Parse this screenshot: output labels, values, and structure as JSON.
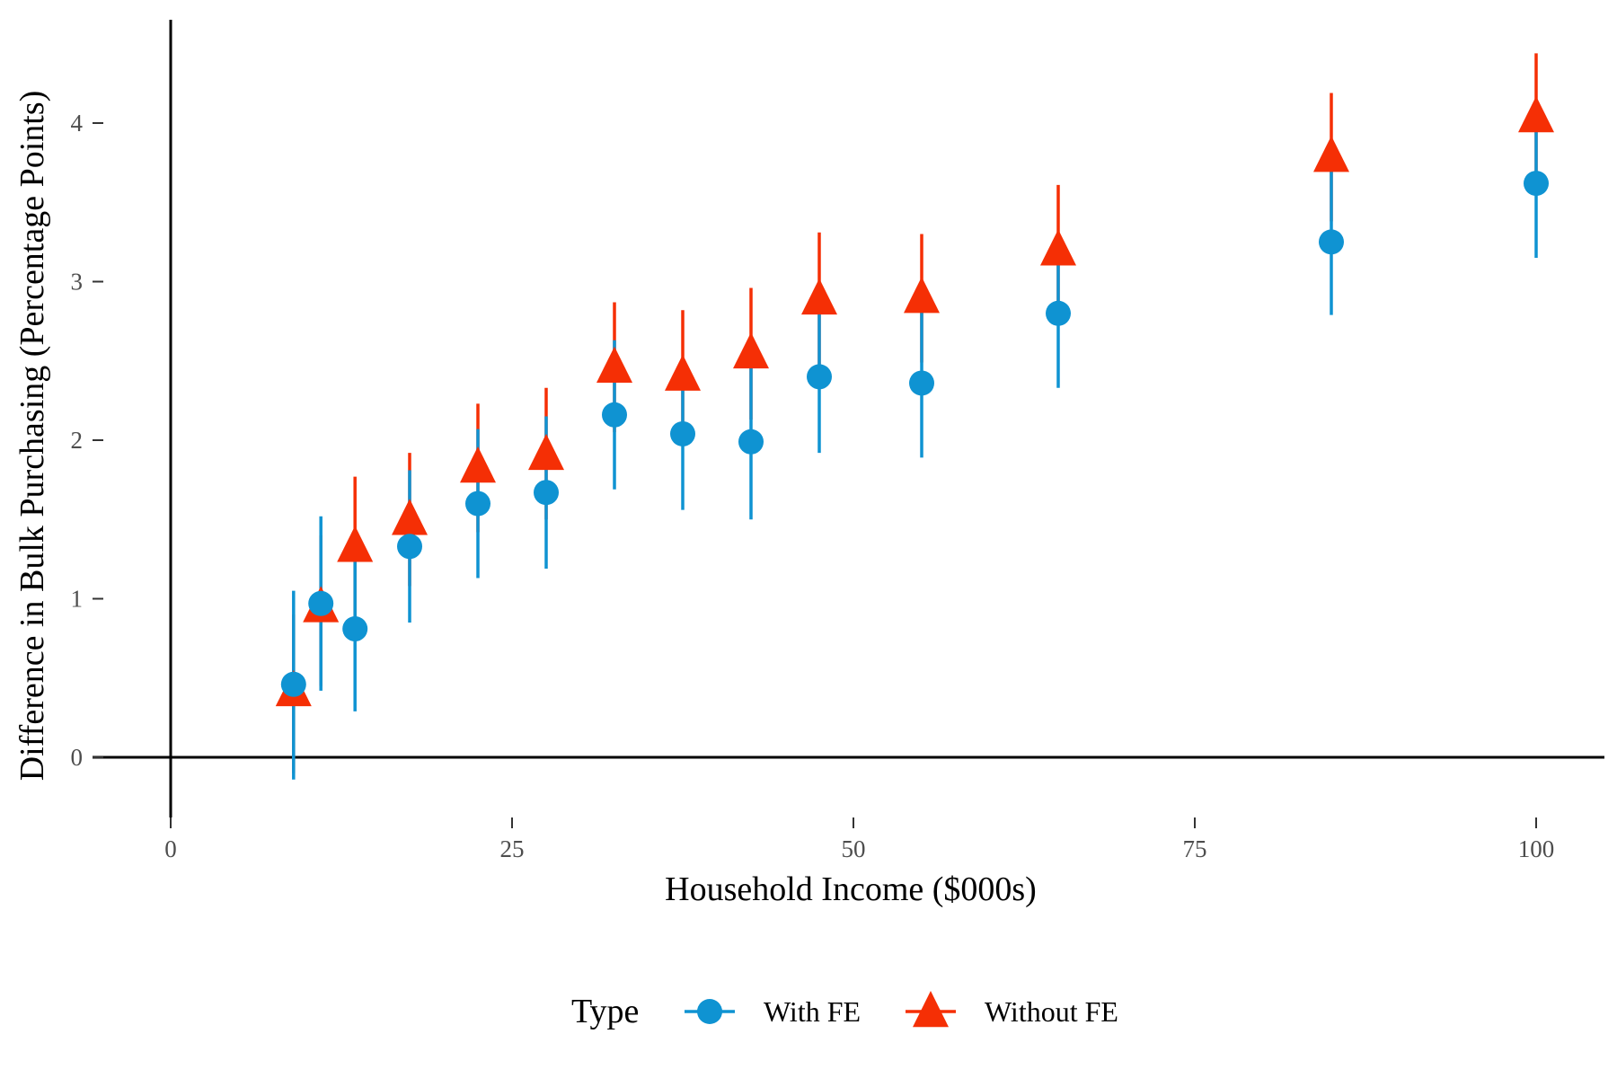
{
  "chart_data": {
    "type": "scatter",
    "xlabel": "Household Income ($000s)",
    "ylabel": "Difference in Bulk Purchasing (Percentage Points)",
    "xlim": [
      0,
      100
    ],
    "ylim": [
      0,
      4
    ],
    "x_ticks": [
      "0",
      "25",
      "50",
      "75",
      "100"
    ],
    "y_ticks": [
      "0",
      "1",
      "2",
      "3",
      "4"
    ],
    "grid": false,
    "error_bars": true,
    "legend": {
      "title": "Type",
      "position": "bottom"
    },
    "series": [
      {
        "name": "With FE",
        "marker": "circle",
        "color": "#0f93d2",
        "points": [
          {
            "x": 9,
            "y": 0.46,
            "lo": -0.14,
            "hi": 1.05
          },
          {
            "x": 11,
            "y": 0.97,
            "lo": 0.42,
            "hi": 1.52
          },
          {
            "x": 13.5,
            "y": 0.81,
            "lo": 0.29,
            "hi": 1.3
          },
          {
            "x": 17.5,
            "y": 1.33,
            "lo": 0.85,
            "hi": 1.81
          },
          {
            "x": 22.5,
            "y": 1.6,
            "lo": 1.13,
            "hi": 2.07
          },
          {
            "x": 27.5,
            "y": 1.67,
            "lo": 1.19,
            "hi": 2.15
          },
          {
            "x": 32.5,
            "y": 2.16,
            "lo": 1.69,
            "hi": 2.63
          },
          {
            "x": 37.5,
            "y": 2.04,
            "lo": 1.56,
            "hi": 2.51
          },
          {
            "x": 42.5,
            "y": 1.99,
            "lo": 1.5,
            "hi": 2.48
          },
          {
            "x": 47.5,
            "y": 2.4,
            "lo": 1.92,
            "hi": 2.88
          },
          {
            "x": 55,
            "y": 2.36,
            "lo": 1.89,
            "hi": 2.84
          },
          {
            "x": 65,
            "y": 2.8,
            "lo": 2.33,
            "hi": 3.27
          },
          {
            "x": 85,
            "y": 3.25,
            "lo": 2.79,
            "hi": 3.72
          },
          {
            "x": 100,
            "y": 3.62,
            "lo": 3.15,
            "hi": 4.08
          }
        ]
      },
      {
        "name": "Without FE",
        "marker": "triangle",
        "color": "#f52f05",
        "points": [
          {
            "x": 9,
            "y": 0.42,
            "lo": -0.1,
            "hi": 0.9
          },
          {
            "x": 11,
            "y": 0.95,
            "lo": 0.45,
            "hi": 1.4
          },
          {
            "x": 13.5,
            "y": 1.33,
            "lo": 0.88,
            "hi": 1.77
          },
          {
            "x": 17.5,
            "y": 1.5,
            "lo": 1.08,
            "hi": 1.92
          },
          {
            "x": 22.5,
            "y": 1.83,
            "lo": 1.42,
            "hi": 2.23
          },
          {
            "x": 27.5,
            "y": 1.91,
            "lo": 1.5,
            "hi": 2.33
          },
          {
            "x": 32.5,
            "y": 2.46,
            "lo": 2.05,
            "hi": 2.87
          },
          {
            "x": 37.5,
            "y": 2.41,
            "lo": 1.99,
            "hi": 2.82
          },
          {
            "x": 42.5,
            "y": 2.55,
            "lo": 2.13,
            "hi": 2.96
          },
          {
            "x": 47.5,
            "y": 2.89,
            "lo": 2.47,
            "hi": 3.31
          },
          {
            "x": 55,
            "y": 2.9,
            "lo": 2.49,
            "hi": 3.3
          },
          {
            "x": 65,
            "y": 3.2,
            "lo": 2.79,
            "hi": 3.61
          },
          {
            "x": 85,
            "y": 3.79,
            "lo": 3.38,
            "hi": 4.19
          },
          {
            "x": 100,
            "y": 4.04,
            "lo": 3.62,
            "hi": 4.44
          }
        ]
      }
    ]
  }
}
